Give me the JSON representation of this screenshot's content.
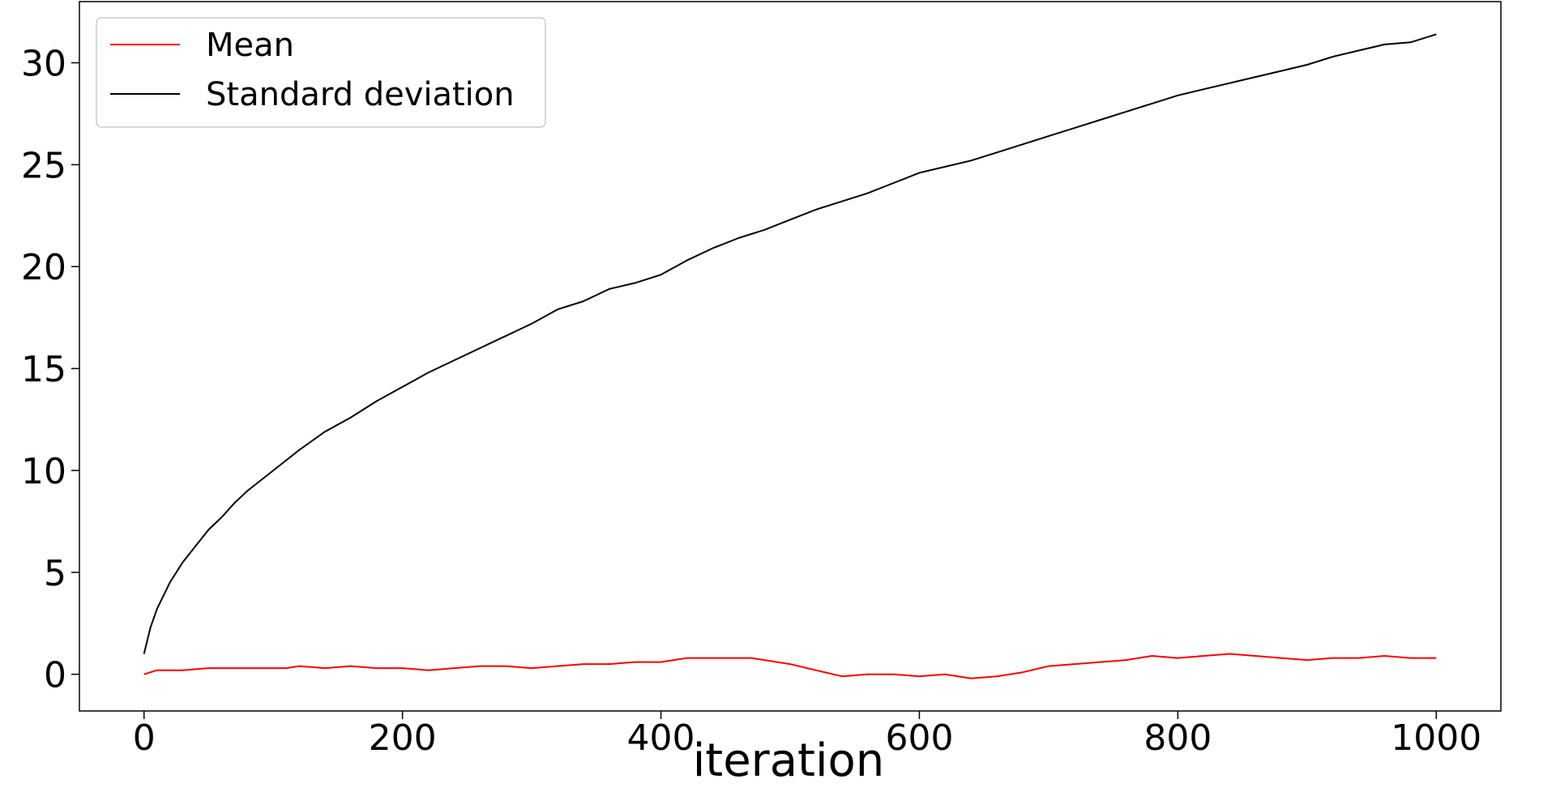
{
  "chart_data": {
    "type": "line",
    "title": "",
    "xlabel": "iteration",
    "ylabel": "",
    "xlim": [
      -50,
      1050
    ],
    "ylim": [
      -1.8,
      33
    ],
    "xticks": [
      0,
      200,
      400,
      600,
      800,
      1000
    ],
    "yticks": [
      0,
      5,
      10,
      15,
      20,
      25,
      30
    ],
    "grid": false,
    "legend_position": "top-left",
    "series": [
      {
        "name": "Mean",
        "color": "#ff0000",
        "x": [
          0,
          10,
          30,
          50,
          70,
          90,
          110,
          120,
          140,
          160,
          180,
          200,
          220,
          240,
          260,
          280,
          300,
          320,
          340,
          360,
          380,
          400,
          420,
          440,
          460,
          470,
          480,
          500,
          520,
          540,
          560,
          580,
          600,
          620,
          640,
          660,
          680,
          700,
          720,
          740,
          760,
          780,
          800,
          820,
          840,
          860,
          880,
          900,
          920,
          940,
          960,
          980,
          1000
        ],
        "y": [
          0.0,
          0.2,
          0.2,
          0.3,
          0.3,
          0.3,
          0.3,
          0.4,
          0.3,
          0.4,
          0.3,
          0.3,
          0.2,
          0.3,
          0.4,
          0.4,
          0.3,
          0.4,
          0.5,
          0.5,
          0.6,
          0.6,
          0.8,
          0.8,
          0.8,
          0.8,
          0.7,
          0.5,
          0.2,
          -0.1,
          0.0,
          0.0,
          -0.1,
          0.0,
          -0.2,
          -0.1,
          0.1,
          0.4,
          0.5,
          0.6,
          0.7,
          0.9,
          0.8,
          0.9,
          1.0,
          0.9,
          0.8,
          0.7,
          0.8,
          0.8,
          0.9,
          0.8,
          0.8
        ]
      },
      {
        "name": "Standard deviation",
        "color": "#000000",
        "x": [
          0,
          5,
          10,
          20,
          30,
          40,
          50,
          60,
          70,
          80,
          90,
          100,
          120,
          140,
          160,
          180,
          200,
          220,
          240,
          260,
          280,
          300,
          320,
          340,
          360,
          380,
          400,
          420,
          440,
          460,
          480,
          500,
          520,
          540,
          560,
          580,
          600,
          620,
          640,
          660,
          680,
          700,
          720,
          740,
          760,
          780,
          800,
          820,
          840,
          860,
          880,
          900,
          920,
          940,
          960,
          980,
          1000
        ],
        "y": [
          1.0,
          2.3,
          3.2,
          4.5,
          5.5,
          6.3,
          7.1,
          7.7,
          8.4,
          9.0,
          9.5,
          10.0,
          11.0,
          11.9,
          12.6,
          13.4,
          14.1,
          14.8,
          15.4,
          16.0,
          16.6,
          17.2,
          17.9,
          18.3,
          18.9,
          19.2,
          19.6,
          20.3,
          20.9,
          21.4,
          21.8,
          22.3,
          22.8,
          23.2,
          23.6,
          24.1,
          24.6,
          24.9,
          25.2,
          25.6,
          26.0,
          26.4,
          26.8,
          27.2,
          27.6,
          28.0,
          28.4,
          28.7,
          29.0,
          29.3,
          29.6,
          29.9,
          30.3,
          30.6,
          30.9,
          31.0,
          31.4
        ]
      }
    ]
  }
}
